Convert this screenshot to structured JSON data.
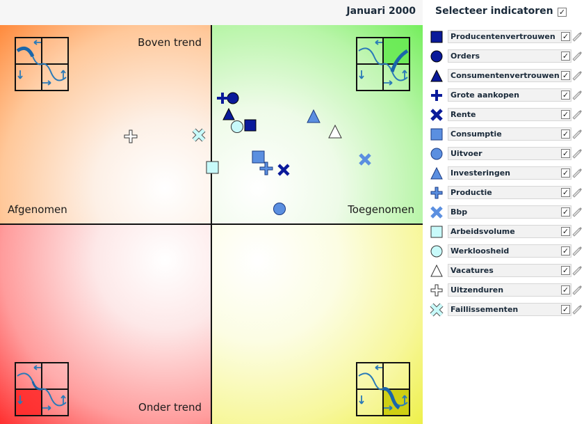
{
  "header": {
    "date": "Januari 2000",
    "select_title": "Selecteer indicatoren",
    "select_all_check": "✓"
  },
  "quadrants": {
    "top_left": "Boven trend",
    "left": "Afgenomen",
    "right": "Toegenomen",
    "bottom": "Onder trend"
  },
  "colors": {
    "dark_blue": "#0a1a9a",
    "mid_blue": "#5b8fe0",
    "light_cyan": "#c8fafa",
    "white": "#ffffff"
  },
  "indicators": [
    {
      "label": "Producentenvertrouwen",
      "shape": "square",
      "fill": "#0a1a9a",
      "checked": "✓"
    },
    {
      "label": "Orders",
      "shape": "circle",
      "fill": "#0a1a9a",
      "checked": "✓"
    },
    {
      "label": "Consumentenvertrouwen",
      "shape": "triangle",
      "fill": "#0a1a9a",
      "checked": "✓"
    },
    {
      "label": "Grote aankopen",
      "shape": "plus",
      "fill": "#0a1a9a",
      "checked": "✓"
    },
    {
      "label": "Rente",
      "shape": "cross",
      "fill": "#0a1a9a",
      "checked": "✓"
    },
    {
      "label": "Consumptie",
      "shape": "square",
      "fill": "#5b8fe0",
      "checked": "✓"
    },
    {
      "label": "Uitvoer",
      "shape": "circle",
      "fill": "#5b8fe0",
      "checked": "✓"
    },
    {
      "label": "Investeringen",
      "shape": "triangle",
      "fill": "#5b8fe0",
      "checked": "✓"
    },
    {
      "label": "Productie",
      "shape": "plus",
      "fill": "#5b8fe0",
      "checked": "✓"
    },
    {
      "label": "Bbp",
      "shape": "cross",
      "fill": "#5b8fe0",
      "checked": "✓"
    },
    {
      "label": "Arbeidsvolume",
      "shape": "square",
      "fill": "#c8fafa",
      "checked": "✓"
    },
    {
      "label": "Werkloosheid",
      "shape": "circle",
      "fill": "#c8fafa",
      "checked": "✓"
    },
    {
      "label": "Vacatures",
      "shape": "triangle",
      "fill": "#ffffff",
      "checked": "✓"
    },
    {
      "label": "Uitzenduren",
      "shape": "plus",
      "fill": "#ffffff",
      "checked": "✓"
    },
    {
      "label": "Faillissementen",
      "shape": "cross",
      "fill": "#c8fafa",
      "checked": "✓"
    }
  ],
  "icons": {
    "phase": "business-cycle-icon",
    "pen": "pencil-icon"
  }
}
